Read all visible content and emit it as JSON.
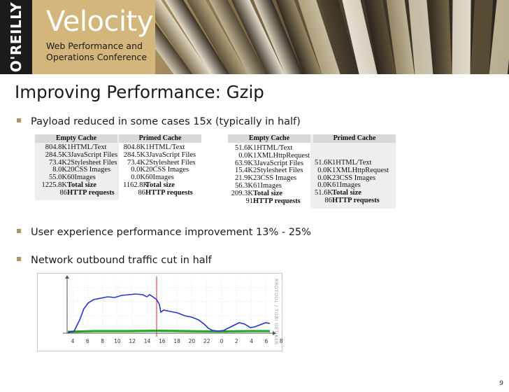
{
  "header": {
    "publisher": "O'REILLY",
    "conference": "Velocity",
    "subtitle_line1": "Web Performance and",
    "subtitle_line2": "Operations Conference"
  },
  "slide": {
    "title": "Improving Performance: Gzip",
    "bullets": [
      "Payload reduced in some cases 15x (typically in half)",
      "User experience performance improvement 13% - 25%",
      "Network outbound traffic cut in half"
    ],
    "page_number": "9"
  },
  "table_before": {
    "empty_header": "Empty Cache",
    "primed_header": "Primed Cache",
    "empty_rows": [
      {
        "value": "804.8K",
        "label": "1HTML/Text"
      },
      {
        "value": "284.5K",
        "label": "3JavaScript Files"
      },
      {
        "value": "73.4K",
        "label": "2Stylesheet Files"
      },
      {
        "value": "8.0K",
        "label": "20CSS Images"
      },
      {
        "value": "55.0K",
        "label": "60Images"
      },
      {
        "value": "1225.8K",
        "label": "Total size"
      },
      {
        "value": "86",
        "label": "HTTP requests"
      }
    ],
    "primed_rows": [
      {
        "value": "804.8K",
        "label": "1HTML/Text"
      },
      {
        "value": "284.5K",
        "label": "3JavaScript Files"
      },
      {
        "value": "73.4K",
        "label": "2Stylesheet Files"
      },
      {
        "value": "0.0K",
        "label": "20CSS Images"
      },
      {
        "value": "0.0K",
        "label": "60Images"
      },
      {
        "value": "1162.8K",
        "label": "Total size"
      },
      {
        "value": "86",
        "label": "HTTP requests"
      }
    ]
  },
  "table_after": {
    "empty_header": "Empty Cache",
    "primed_header": "Primed Cache",
    "empty_rows": [
      {
        "value": "51.6K",
        "label": "1HTML/Text"
      },
      {
        "value": "0.0K",
        "label": "1XMLHttpRequest"
      },
      {
        "value": "63.9K",
        "label": "3JavaScript Files"
      },
      {
        "value": "15.4K",
        "label": "2Stylesheet Files"
      },
      {
        "value": "21.9K",
        "label": "23CSS Images"
      },
      {
        "value": "56.3K",
        "label": "61Images"
      },
      {
        "value": "209.3K",
        "label": "Total size"
      },
      {
        "value": "91",
        "label": "HTTP requests"
      }
    ],
    "primed_rows": [
      {
        "value": "51.6K",
        "label": "1HTML/Text"
      },
      {
        "value": "0.0K",
        "label": "1XMLHttpRequest"
      },
      {
        "value": "0.0K",
        "label": "23CSS Images"
      },
      {
        "value": "0.0K",
        "label": "61Images"
      },
      {
        "value": "51.6K",
        "label": "Total size"
      },
      {
        "value": "86",
        "label": "HTTP requests"
      }
    ]
  },
  "graph": {
    "side_label": "RRDTOOL / TOBI OETIKER",
    "x_ticks": [
      "4",
      "6",
      "8",
      "10",
      "12",
      "14",
      "16",
      "18",
      "20",
      "22",
      "0",
      "2",
      "4",
      "6",
      "8"
    ],
    "colors": {
      "outbound": "#2b33c8",
      "inbound": "#1fa51f",
      "marker": "#e32222"
    }
  }
}
